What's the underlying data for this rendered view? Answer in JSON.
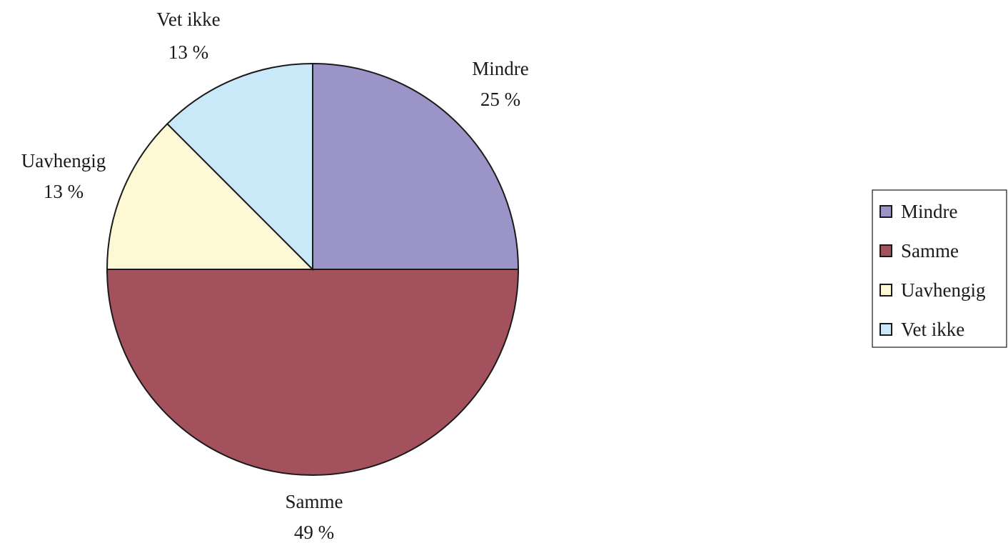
{
  "chart_data": {
    "type": "pie",
    "categories": [
      "Mindre",
      "Samme",
      "Uavhengig",
      "Vet ikke"
    ],
    "values": [
      25,
      49,
      13,
      13
    ],
    "value_labels": [
      "25 %",
      "49 %",
      "13 %",
      "13 %"
    ],
    "colors": [
      "#9b94c8",
      "#a4515e",
      "#fef9d4",
      "#c9e9f8"
    ],
    "start_angle": "12 o'clock, clockwise",
    "legend": {
      "position": "right",
      "entries": [
        "Mindre",
        "Samme",
        "Uavhengig",
        "Vet ikke"
      ]
    },
    "title": ""
  }
}
